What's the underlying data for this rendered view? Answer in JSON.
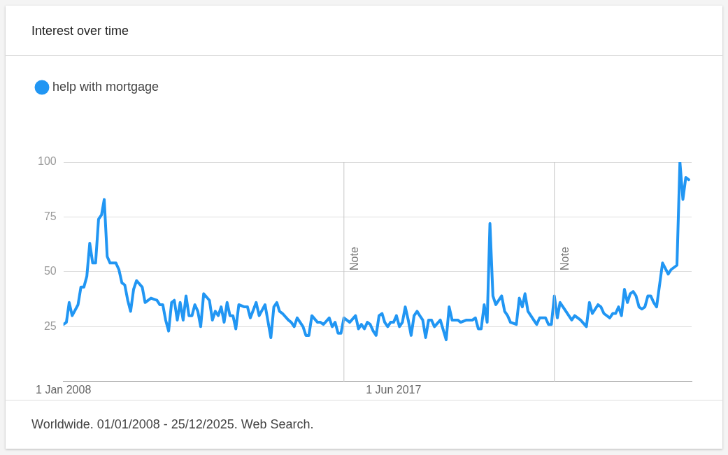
{
  "chart_data": {
    "type": "line",
    "title": "Interest over time",
    "x": [
      "2008-01",
      "2008-02",
      "2008-03",
      "2008-04",
      "2008-06",
      "2008-07",
      "2008-08",
      "2008-09",
      "2008-10",
      "2008-11",
      "2008-12",
      "2009-01",
      "2009-02",
      "2009-03",
      "2009-04",
      "2009-05",
      "2009-07",
      "2009-08",
      "2009-09",
      "2009-10",
      "2009-11",
      "2009-12",
      "2010-01",
      "2010-02",
      "2010-04",
      "2010-05",
      "2010-07",
      "2010-09",
      "2010-10",
      "2010-11",
      "2010-12",
      "2011-01",
      "2011-02",
      "2011-03",
      "2011-04",
      "2011-05",
      "2011-06",
      "2011-07",
      "2011-08",
      "2011-09",
      "2011-10",
      "2011-11",
      "2011-12",
      "2012-01",
      "2012-03",
      "2012-04",
      "2012-05",
      "2012-06",
      "2012-07",
      "2012-08",
      "2012-09",
      "2012-10",
      "2012-11",
      "2012-12",
      "2013-01",
      "2013-03",
      "2013-04",
      "2013-05",
      "2013-07",
      "2013-08",
      "2013-10",
      "2013-12",
      "2014-01",
      "2014-02",
      "2014-03",
      "2014-04",
      "2014-06",
      "2014-07",
      "2014-08",
      "2014-09",
      "2014-11",
      "2014-12",
      "2015-01",
      "2015-02",
      "2015-04",
      "2015-05",
      "2015-06",
      "2015-08",
      "2015-09",
      "2015-10",
      "2015-11",
      "2015-12",
      "2016-01",
      "2016-03",
      "2016-05",
      "2016-06",
      "2016-07",
      "2016-08",
      "2016-09",
      "2016-10",
      "2016-11",
      "2016-12",
      "2017-01",
      "2017-02",
      "2017-03",
      "2017-04",
      "2017-05",
      "2017-06",
      "2017-07",
      "2017-08",
      "2017-09",
      "2017-10",
      "2017-11",
      "2017-12",
      "2018-01",
      "2018-02",
      "2018-03",
      "2018-04",
      "2018-05",
      "2018-06",
      "2018-07",
      "2018-08",
      "2018-10",
      "2018-12",
      "2019-01",
      "2019-02",
      "2019-04",
      "2019-05",
      "2019-07",
      "2019-09",
      "2019-10",
      "2019-11",
      "2019-12",
      "2020-01",
      "2020-02",
      "2020-03",
      "2020-04",
      "2020-05",
      "2020-07",
      "2020-08",
      "2020-09",
      "2020-10",
      "2020-12",
      "2021-01",
      "2021-02",
      "2021-03",
      "2021-04",
      "2021-05",
      "2021-07",
      "2021-08",
      "2021-10",
      "2021-11",
      "2021-12",
      "2022-01",
      "2022-02",
      "2022-03",
      "2022-04",
      "2022-07",
      "2022-08",
      "2022-10",
      "2022-12",
      "2023-01",
      "2023-02",
      "2023-04",
      "2023-05",
      "2023-06",
      "2023-08",
      "2023-09",
      "2023-10",
      "2023-11",
      "2023-12",
      "2024-01",
      "2024-02",
      "2024-03",
      "2024-04",
      "2024-05",
      "2024-06",
      "2024-07",
      "2024-08",
      "2024-09",
      "2024-10",
      "2024-11",
      "2024-12",
      "2025-02",
      "2025-04",
      "2025-05",
      "2025-07",
      "2025-08",
      "2025-09",
      "2025-10",
      "2025-11"
    ],
    "series": [
      {
        "name": "help with mortgage",
        "color": "#2196f3",
        "values": [
          26,
          27,
          36,
          30,
          35,
          43,
          43,
          48,
          63,
          54,
          54,
          74,
          76,
          83,
          57,
          54,
          54,
          51,
          45,
          44,
          37,
          32,
          42,
          46,
          43,
          36,
          38,
          37,
          35,
          35,
          28,
          23,
          36,
          37,
          28,
          36,
          28,
          39,
          30,
          30,
          35,
          32,
          25,
          40,
          37,
          28,
          32,
          30,
          34,
          27,
          36,
          30,
          30,
          24,
          35,
          34,
          34,
          29,
          36,
          30,
          35,
          20,
          34,
          36,
          32,
          31,
          28,
          27,
          25,
          29,
          25,
          21,
          21,
          30,
          27,
          27,
          26,
          29,
          25,
          27,
          22,
          22,
          29,
          27,
          30,
          24,
          26,
          24,
          27,
          26,
          23,
          21,
          30,
          31,
          27,
          25,
          27,
          27,
          30,
          25,
          27,
          34,
          28,
          21,
          30,
          32,
          30,
          28,
          20,
          28,
          28,
          25,
          28,
          19,
          34,
          28,
          28,
          27,
          28,
          28,
          29,
          24,
          24,
          35,
          27,
          72,
          39,
          35,
          39,
          32,
          30,
          27,
          26,
          38,
          34,
          40,
          32,
          30,
          26,
          29,
          29,
          26,
          26,
          39,
          29,
          36,
          34,
          28,
          30,
          28,
          25,
          36,
          31,
          35,
          34,
          31,
          29,
          31,
          31,
          34,
          30,
          42,
          36,
          40,
          41,
          39,
          34,
          33,
          34,
          39,
          39,
          36,
          34,
          54,
          49,
          51,
          53,
          100,
          83,
          93,
          92
        ]
      }
    ],
    "xlim": [
      "2008-01",
      "2025-12"
    ],
    "xticks": [
      {
        "value": "2008-01-01",
        "label": "1 Jan 2008"
      },
      {
        "value": "2017-06-01",
        "label": "1 Jun 2017"
      }
    ],
    "ylim": [
      0,
      100
    ],
    "yticks": [
      25,
      50,
      75,
      100
    ],
    "grid": "y",
    "legend": "top left",
    "marker": "none",
    "line_style": "solid",
    "ref_lines": [
      {
        "axis": "x",
        "value": "2016-01",
        "label": "Note",
        "color": "#c6c6c6"
      },
      {
        "axis": "x",
        "value": "2022-01",
        "label": "Note",
        "color": "#c6c6c6"
      }
    ],
    "annotations": [
      "Worldwide. 01/01/2008 - 25/12/2025. Web Search."
    ]
  }
}
